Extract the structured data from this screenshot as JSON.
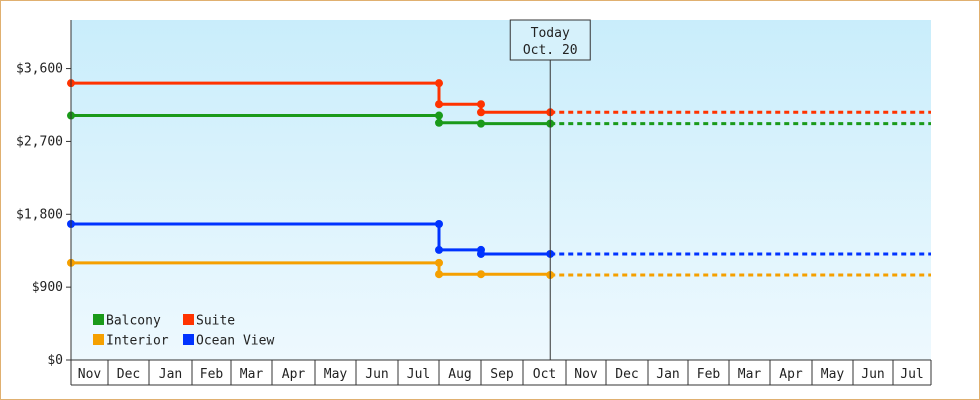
{
  "chart_data": {
    "type": "line",
    "title": "",
    "xlabel": "",
    "ylabel": "",
    "ylim": [
      0,
      4200
    ],
    "y_ticks": [
      0,
      900,
      1800,
      2700,
      3600
    ],
    "y_tick_labels": [
      "$0",
      "$900",
      "$1,800",
      "$2,700",
      "$3,600"
    ],
    "x_months": [
      "Nov",
      "Dec",
      "Jan",
      "Feb",
      "Mar",
      "Apr",
      "May",
      "Jun",
      "Jul",
      "Aug",
      "Sep",
      "Oct",
      "Nov",
      "Dec",
      "Jan",
      "Feb",
      "Mar",
      "Apr",
      "May",
      "Jun",
      "Jul"
    ],
    "today_marker": {
      "line1": "Today",
      "line2": "Oct. 20",
      "month_index": 11,
      "day": 20
    },
    "grid": false,
    "legend_position": "bottom-left",
    "series": [
      {
        "name": "Balcony",
        "color": "#1a9a1a",
        "points": [
          {
            "m": 0,
            "d": 1,
            "y": 3020
          },
          {
            "m": 9,
            "d": 1,
            "y": 3020
          },
          {
            "m": 9,
            "d": 1,
            "y": 2930
          },
          {
            "m": 10,
            "d": 1,
            "y": 2920
          },
          {
            "m": 11,
            "d": 20,
            "y": 2920
          }
        ],
        "projection_end": {
          "m": 20,
          "d": 31,
          "y": 2920
        }
      },
      {
        "name": "Suite",
        "color": "#ff3300",
        "points": [
          {
            "m": 0,
            "d": 1,
            "y": 3420
          },
          {
            "m": 9,
            "d": 1,
            "y": 3420
          },
          {
            "m": 9,
            "d": 1,
            "y": 3160
          },
          {
            "m": 10,
            "d": 1,
            "y": 3160
          },
          {
            "m": 10,
            "d": 1,
            "y": 3060
          },
          {
            "m": 11,
            "d": 20,
            "y": 3060
          }
        ],
        "projection_end": {
          "m": 20,
          "d": 31,
          "y": 3060
        }
      },
      {
        "name": "Interior",
        "color": "#f5a000",
        "points": [
          {
            "m": 0,
            "d": 1,
            "y": 1200
          },
          {
            "m": 9,
            "d": 1,
            "y": 1200
          },
          {
            "m": 9,
            "d": 1,
            "y": 1060
          },
          {
            "m": 10,
            "d": 1,
            "y": 1060
          },
          {
            "m": 11,
            "d": 20,
            "y": 1050
          }
        ],
        "projection_end": {
          "m": 20,
          "d": 31,
          "y": 1050
        }
      },
      {
        "name": "Ocean View",
        "color": "#0033ff",
        "points": [
          {
            "m": 0,
            "d": 1,
            "y": 1680
          },
          {
            "m": 9,
            "d": 1,
            "y": 1680
          },
          {
            "m": 9,
            "d": 1,
            "y": 1360
          },
          {
            "m": 10,
            "d": 1,
            "y": 1360
          },
          {
            "m": 10,
            "d": 1,
            "y": 1310
          },
          {
            "m": 11,
            "d": 20,
            "y": 1310
          }
        ],
        "projection_end": {
          "m": 20,
          "d": 31,
          "y": 1310
        }
      }
    ]
  }
}
